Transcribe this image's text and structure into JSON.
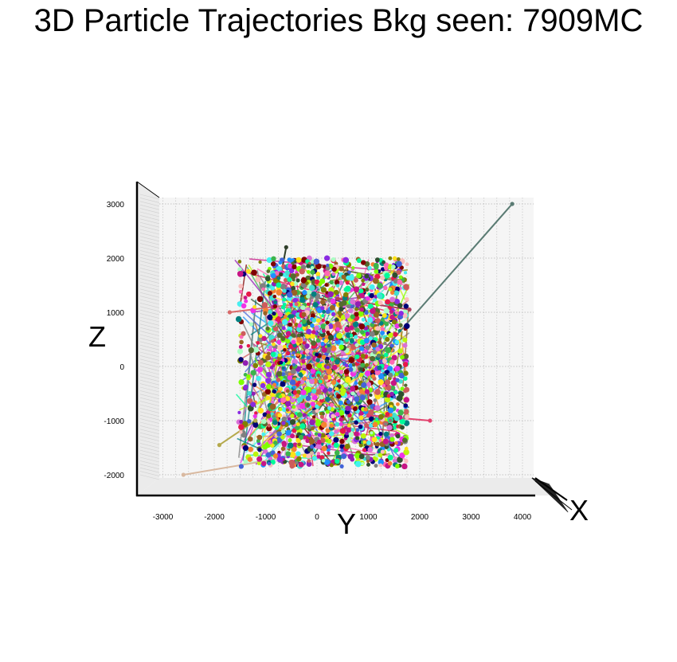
{
  "chart_data": {
    "type": "scatter",
    "title": "3D Particle Trajectories Bkg seen: 7909MC",
    "xlabel": "Y",
    "ylabel": "Z",
    "zlabel": "X",
    "view": "looking along X axis (Y horizontal, Z vertical)",
    "xlim": [
      -3500,
      4200
    ],
    "ylim": [
      -2400,
      3400
    ],
    "x_ticks": [
      "-3000",
      "-2000",
      "-1000",
      "0",
      "1000",
      "2000",
      "3000",
      "4000"
    ],
    "y_ticks": [
      "-2000",
      "-1000",
      "0",
      "1000",
      "2000",
      "3000"
    ],
    "grid": true,
    "legend": "none",
    "point_cloud": {
      "y_range": [
        -1600,
        1800
      ],
      "z_range": [
        -1850,
        2000
      ],
      "dense_y_range": [
        -900,
        1600
      ],
      "approx_points": 4500
    },
    "notable_tracks": [
      {
        "color": "#5a7b73",
        "points": [
          [
            1200,
            200
          ],
          [
            3800,
            3000
          ]
        ]
      },
      {
        "color": "#d9b9a0",
        "points": [
          [
            -2600,
            -2000
          ],
          [
            -100,
            -1600
          ]
        ]
      },
      {
        "color": "#e2426d",
        "points": [
          [
            1000,
            -900
          ],
          [
            2200,
            -1000
          ]
        ]
      },
      {
        "color": "#b5a94c",
        "points": [
          [
            -1900,
            -1450
          ],
          [
            -1200,
            -1000
          ]
        ]
      },
      {
        "color": "#d96a6a",
        "points": [
          [
            -1700,
            1000
          ],
          [
            -400,
            1150
          ]
        ]
      },
      {
        "color": "#2f3f2a",
        "points": [
          [
            -600,
            2200
          ],
          [
            -700,
            1700
          ]
        ]
      },
      {
        "color": "#ad3e5a",
        "points": [
          [
            1800,
            1050
          ],
          [
            400,
            1250
          ]
        ]
      }
    ],
    "marker_colors": [
      "#e6194b",
      "#3cb44b",
      "#ffe119",
      "#4363d8",
      "#f58231",
      "#911eb4",
      "#46f0f0",
      "#f032e6",
      "#bcf60c",
      "#fabebe",
      "#008080",
      "#9a6324",
      "#800000",
      "#aaffc3",
      "#808000",
      "#000075",
      "#808080",
      "#2f4f2f",
      "#c71585",
      "#7fff00",
      "#1e90ff",
      "#ff69b4",
      "#00fa9a",
      "#8a2be2",
      "#556b2f",
      "#cd5c5c",
      "#40e0d0",
      "#da70d6"
    ]
  }
}
